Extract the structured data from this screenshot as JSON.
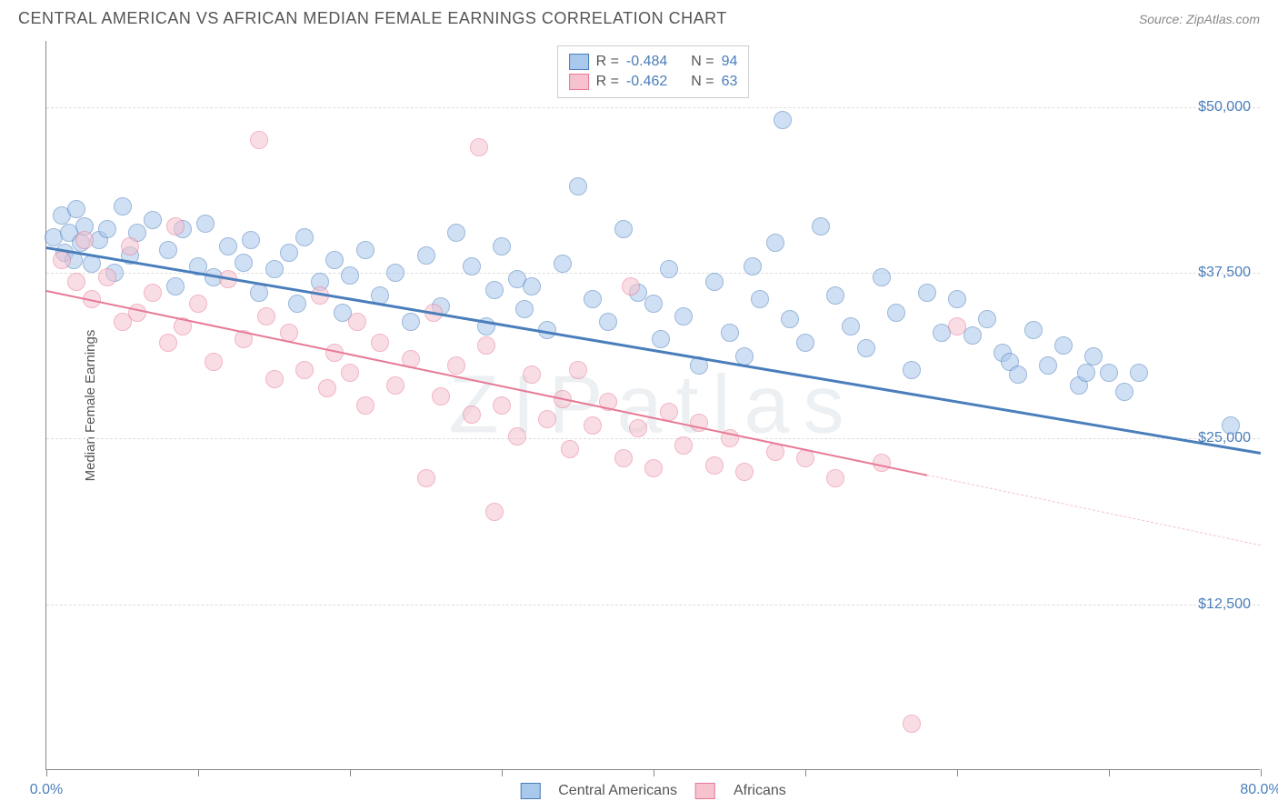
{
  "title": "CENTRAL AMERICAN VS AFRICAN MEDIAN FEMALE EARNINGS CORRELATION CHART",
  "source": "Source: ZipAtlas.com",
  "watermark": "ZIPatlas",
  "ylabel": "Median Female Earnings",
  "chart": {
    "type": "scatter",
    "xlim": [
      0,
      80
    ],
    "ylim": [
      0,
      55000
    ],
    "xtick_positions": [
      0,
      10,
      20,
      30,
      40,
      50,
      60,
      70,
      80
    ],
    "xtick_labels": {
      "0": "0.0%",
      "80": "80.0%"
    },
    "ytick_positions": [
      12500,
      25000,
      37500,
      50000
    ],
    "ytick_labels": {
      "12500": "$12,500",
      "25000": "$25,000",
      "37500": "$37,500",
      "50000": "$50,000"
    },
    "grid_color": "#dddddd",
    "background_color": "#ffffff",
    "axis_color": "#888888",
    "series": [
      {
        "name": "Central Americans",
        "color_fill": "#a8c8ec",
        "color_stroke": "#4a7ebb",
        "marker_radius": 10,
        "R": "-0.484",
        "N": "94",
        "regression": {
          "x1": 0,
          "y1": 39500,
          "x2": 80,
          "y2": 24000,
          "color": "#4a7ebb",
          "width": 2.5
        },
        "points": [
          [
            0.5,
            40200
          ],
          [
            1,
            41800
          ],
          [
            1.2,
            39000
          ],
          [
            1.5,
            40500
          ],
          [
            1.8,
            38500
          ],
          [
            2,
            42300
          ],
          [
            2.3,
            39800
          ],
          [
            2.5,
            41000
          ],
          [
            3,
            38200
          ],
          [
            3.5,
            40000
          ],
          [
            4,
            40800
          ],
          [
            4.5,
            37500
          ],
          [
            5,
            42500
          ],
          [
            5.5,
            38800
          ],
          [
            6,
            40500
          ],
          [
            7,
            41500
          ],
          [
            8,
            39200
          ],
          [
            8.5,
            36500
          ],
          [
            9,
            40800
          ],
          [
            10,
            38000
          ],
          [
            10.5,
            41200
          ],
          [
            11,
            37200
          ],
          [
            12,
            39500
          ],
          [
            13,
            38300
          ],
          [
            13.5,
            40000
          ],
          [
            14,
            36000
          ],
          [
            15,
            37800
          ],
          [
            16,
            39000
          ],
          [
            16.5,
            35200
          ],
          [
            17,
            40200
          ],
          [
            18,
            36800
          ],
          [
            19,
            38500
          ],
          [
            19.5,
            34500
          ],
          [
            20,
            37300
          ],
          [
            21,
            39200
          ],
          [
            22,
            35800
          ],
          [
            23,
            37500
          ],
          [
            24,
            33800
          ],
          [
            25,
            38800
          ],
          [
            26,
            35000
          ],
          [
            27,
            40500
          ],
          [
            28,
            38000
          ],
          [
            29,
            33500
          ],
          [
            29.5,
            36200
          ],
          [
            30,
            39500
          ],
          [
            31,
            37000
          ],
          [
            31.5,
            34800
          ],
          [
            32,
            36500
          ],
          [
            33,
            33200
          ],
          [
            34,
            38200
          ],
          [
            35,
            44000
          ],
          [
            36,
            35500
          ],
          [
            37,
            33800
          ],
          [
            38,
            40800
          ],
          [
            39,
            36000
          ],
          [
            40,
            35200
          ],
          [
            40.5,
            32500
          ],
          [
            41,
            37800
          ],
          [
            42,
            34200
          ],
          [
            43,
            30500
          ],
          [
            44,
            36800
          ],
          [
            45,
            33000
          ],
          [
            46,
            31200
          ],
          [
            46.5,
            38000
          ],
          [
            47,
            35500
          ],
          [
            48,
            39800
          ],
          [
            48.5,
            49000
          ],
          [
            49,
            34000
          ],
          [
            50,
            32200
          ],
          [
            51,
            41000
          ],
          [
            52,
            35800
          ],
          [
            53,
            33500
          ],
          [
            54,
            31800
          ],
          [
            55,
            37200
          ],
          [
            56,
            34500
          ],
          [
            57,
            30200
          ],
          [
            58,
            36000
          ],
          [
            59,
            33000
          ],
          [
            60,
            35500
          ],
          [
            61,
            32800
          ],
          [
            62,
            34000
          ],
          [
            63,
            31500
          ],
          [
            63.5,
            30800
          ],
          [
            64,
            29800
          ],
          [
            65,
            33200
          ],
          [
            66,
            30500
          ],
          [
            67,
            32000
          ],
          [
            68,
            29000
          ],
          [
            68.5,
            30000
          ],
          [
            69,
            31200
          ],
          [
            70,
            30000
          ],
          [
            71,
            28500
          ],
          [
            72,
            30000
          ],
          [
            78,
            26000
          ]
        ]
      },
      {
        "name": "Africans",
        "color_fill": "#f5c2ce",
        "color_stroke": "#e77a96",
        "marker_radius": 10,
        "R": "-0.462",
        "N": "63",
        "regression_solid": {
          "x1": 0,
          "y1": 36200,
          "x2": 58,
          "y2": 22300,
          "color": "#e77a96",
          "width": 2
        },
        "regression_dashed": {
          "x1": 58,
          "y1": 22300,
          "x2": 80,
          "y2": 17000,
          "color": "#f5c2ce"
        },
        "points": [
          [
            1,
            38500
          ],
          [
            2,
            36800
          ],
          [
            2.5,
            40000
          ],
          [
            3,
            35500
          ],
          [
            4,
            37200
          ],
          [
            5,
            33800
          ],
          [
            5.5,
            39500
          ],
          [
            6,
            34500
          ],
          [
            7,
            36000
          ],
          [
            8,
            32200
          ],
          [
            8.5,
            41000
          ],
          [
            9,
            33500
          ],
          [
            10,
            35200
          ],
          [
            11,
            30800
          ],
          [
            12,
            37000
          ],
          [
            13,
            32500
          ],
          [
            14,
            47500
          ],
          [
            14.5,
            34200
          ],
          [
            15,
            29500
          ],
          [
            16,
            33000
          ],
          [
            17,
            30200
          ],
          [
            18,
            35800
          ],
          [
            18.5,
            28800
          ],
          [
            19,
            31500
          ],
          [
            20,
            30000
          ],
          [
            20.5,
            33800
          ],
          [
            21,
            27500
          ],
          [
            22,
            32200
          ],
          [
            23,
            29000
          ],
          [
            24,
            31000
          ],
          [
            25,
            22000
          ],
          [
            25.5,
            34500
          ],
          [
            26,
            28200
          ],
          [
            27,
            30500
          ],
          [
            28,
            26800
          ],
          [
            28.5,
            47000
          ],
          [
            29,
            32000
          ],
          [
            29.5,
            19500
          ],
          [
            30,
            27500
          ],
          [
            31,
            25200
          ],
          [
            32,
            29800
          ],
          [
            33,
            26500
          ],
          [
            34,
            28000
          ],
          [
            34.5,
            24200
          ],
          [
            35,
            30200
          ],
          [
            36,
            26000
          ],
          [
            37,
            27800
          ],
          [
            38,
            23500
          ],
          [
            38.5,
            36500
          ],
          [
            39,
            25800
          ],
          [
            40,
            22800
          ],
          [
            41,
            27000
          ],
          [
            42,
            24500
          ],
          [
            43,
            26200
          ],
          [
            44,
            23000
          ],
          [
            45,
            25000
          ],
          [
            46,
            22500
          ],
          [
            48,
            24000
          ],
          [
            50,
            23500
          ],
          [
            52,
            22000
          ],
          [
            55,
            23200
          ],
          [
            57,
            3500
          ],
          [
            60,
            33500
          ]
        ]
      }
    ]
  },
  "legend_bottom": [
    {
      "label": "Central Americans",
      "fill": "#a8c8ec",
      "stroke": "#4a7ebb"
    },
    {
      "label": "Africans",
      "fill": "#f5c2ce",
      "stroke": "#e77a96"
    }
  ]
}
